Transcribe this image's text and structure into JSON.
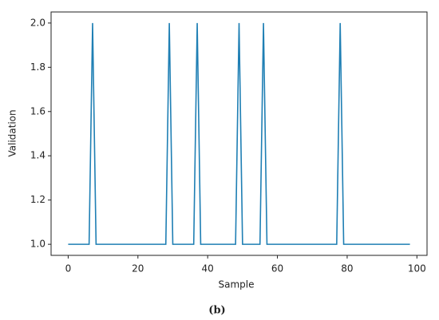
{
  "chart_data": {
    "type": "line",
    "x_label": "Sample",
    "y_label": "Validation",
    "caption": "(b)",
    "x": [
      0,
      1,
      2,
      3,
      4,
      5,
      6,
      7,
      8,
      9,
      10,
      11,
      12,
      13,
      14,
      15,
      16,
      17,
      18,
      19,
      20,
      21,
      22,
      23,
      24,
      25,
      26,
      27,
      28,
      29,
      30,
      31,
      32,
      33,
      34,
      35,
      36,
      37,
      38,
      39,
      40,
      41,
      42,
      43,
      44,
      45,
      46,
      47,
      48,
      49,
      50,
      51,
      52,
      53,
      54,
      55,
      56,
      57,
      58,
      59,
      60,
      61,
      62,
      63,
      64,
      65,
      66,
      67,
      68,
      69,
      70,
      71,
      72,
      73,
      74,
      75,
      76,
      77,
      78,
      79,
      80,
      81,
      82,
      83,
      84,
      85,
      86,
      87,
      88,
      89,
      90,
      91,
      92,
      93,
      94,
      95,
      96,
      97,
      98
    ],
    "series": [
      {
        "color": "#1f7fb4",
        "values": [
          1,
          1,
          1,
          1,
          1,
          1,
          1,
          2,
          1,
          1,
          1,
          1,
          1,
          1,
          1,
          1,
          1,
          1,
          1,
          1,
          1,
          1,
          1,
          1,
          1,
          1,
          1,
          1,
          1,
          2,
          1,
          1,
          1,
          1,
          1,
          1,
          1,
          2,
          1,
          1,
          1,
          1,
          1,
          1,
          1,
          1,
          1,
          1,
          1,
          2,
          1,
          1,
          1,
          1,
          1,
          1,
          2,
          1,
          1,
          1,
          1,
          1,
          1,
          1,
          1,
          1,
          1,
          1,
          1,
          1,
          1,
          1,
          1,
          1,
          1,
          1,
          1,
          1,
          2,
          1,
          1,
          1,
          1,
          1,
          1,
          1,
          1,
          1,
          1,
          1,
          1,
          1,
          1,
          1,
          1,
          1,
          1,
          1,
          1
        ]
      }
    ],
    "xlim": [
      -4.9,
      102.9
    ],
    "xticks": [
      0,
      20,
      40,
      60,
      80,
      100
    ],
    "ylim": [
      0.95,
      2.05
    ],
    "yticks": [
      {
        "value": 1.0,
        "label": "1.0"
      },
      1.2,
      1.4,
      1.6,
      1.8,
      {
        "value": 2.0,
        "label": "2.0"
      }
    ]
  }
}
